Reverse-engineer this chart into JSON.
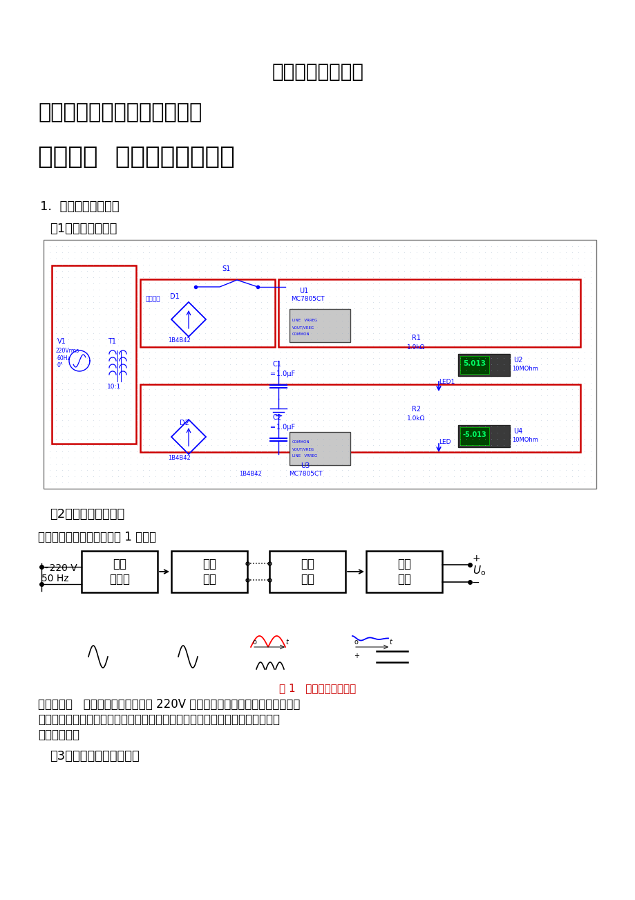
{
  "title": "应用电子技术作业",
  "section1": "第一篇：模拟电子电路应用：",
  "section2": "项目一：  直流稳压电源设计",
  "item1_label": "1.  作业内容与要求：",
  "sub1": "（1）画出设计框图",
  "sub2": "（2）分析电路原理图",
  "sub3": "（3）附上仿真电路结果图",
  "desc_line1": "直流稳压电源设计框图如图 1 所示：",
  "fig_caption": "图 1   直流稳压电源框图",
  "para1": "主要原理是   电源变压器将交流电网 220V 的电压降压为所需的交流电压，然后",
  "para2": "通过整流电路将交流电压变成单极性电压，再通过滤波电路加以滤除，得到平滑",
  "para3": "的直流电压。",
  "bg_color": "#ffffff"
}
